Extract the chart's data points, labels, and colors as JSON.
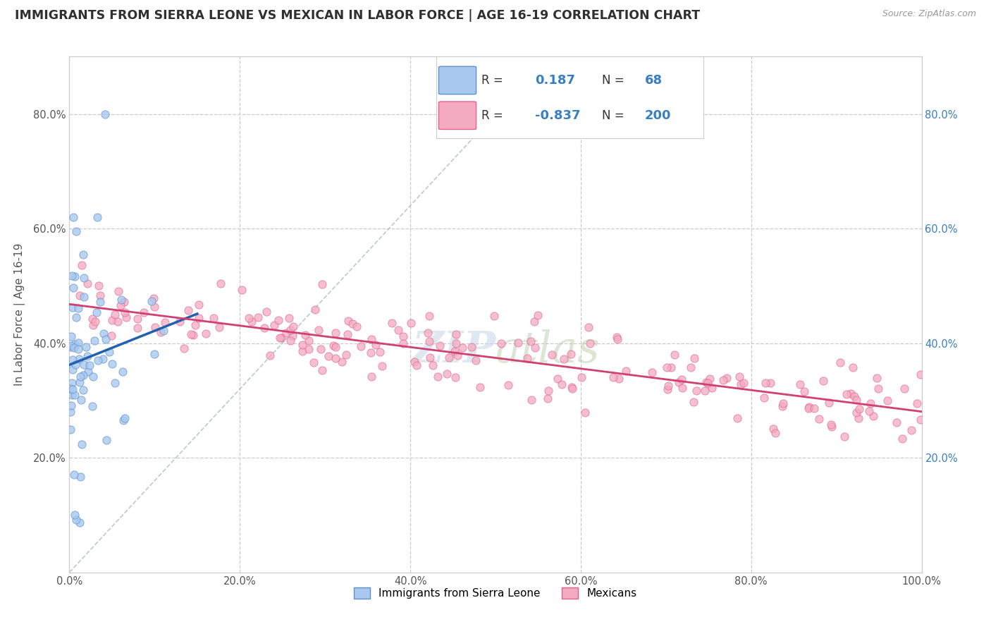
{
  "title": "IMMIGRANTS FROM SIERRA LEONE VS MEXICAN IN LABOR FORCE | AGE 16-19 CORRELATION CHART",
  "source": "Source: ZipAtlas.com",
  "ylabel": "In Labor Force | Age 16-19",
  "xmin": 0.0,
  "xmax": 1.0,
  "ymin": 0.0,
  "ymax": 0.9,
  "ytick_values": [
    0.0,
    0.2,
    0.4,
    0.6,
    0.8
  ],
  "xtick_values": [
    0.0,
    0.2,
    0.4,
    0.6,
    0.8,
    1.0
  ],
  "legend_labels": [
    "Immigrants from Sierra Leone",
    "Mexicans"
  ],
  "legend_r": [
    "0.187",
    "-0.837"
  ],
  "legend_n": [
    "68",
    "200"
  ],
  "sierra_leone_color": "#A8C8F0",
  "mexican_color": "#F4AABF",
  "sierra_leone_edge": "#6090C8",
  "mexican_edge": "#E06090",
  "sierra_leone_trend_color": "#2060B0",
  "mexican_trend_color": "#D04070",
  "watermark_color": "#C8D8E8",
  "background_color": "#FFFFFF",
  "grid_color": "#CCCCCC",
  "title_color": "#303030"
}
